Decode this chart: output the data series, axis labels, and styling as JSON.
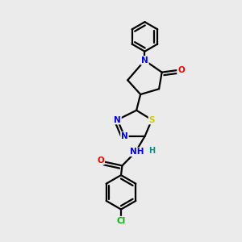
{
  "background_color": "#ebebeb",
  "bond_color": "#000000",
  "line_width": 1.6,
  "atom_colors": {
    "N": "#0000ff",
    "O": "#ff0000",
    "S": "#cccc00",
    "Cl": "#00bb00",
    "C": "#000000",
    "H": "#009090"
  },
  "font_size": 7.5
}
